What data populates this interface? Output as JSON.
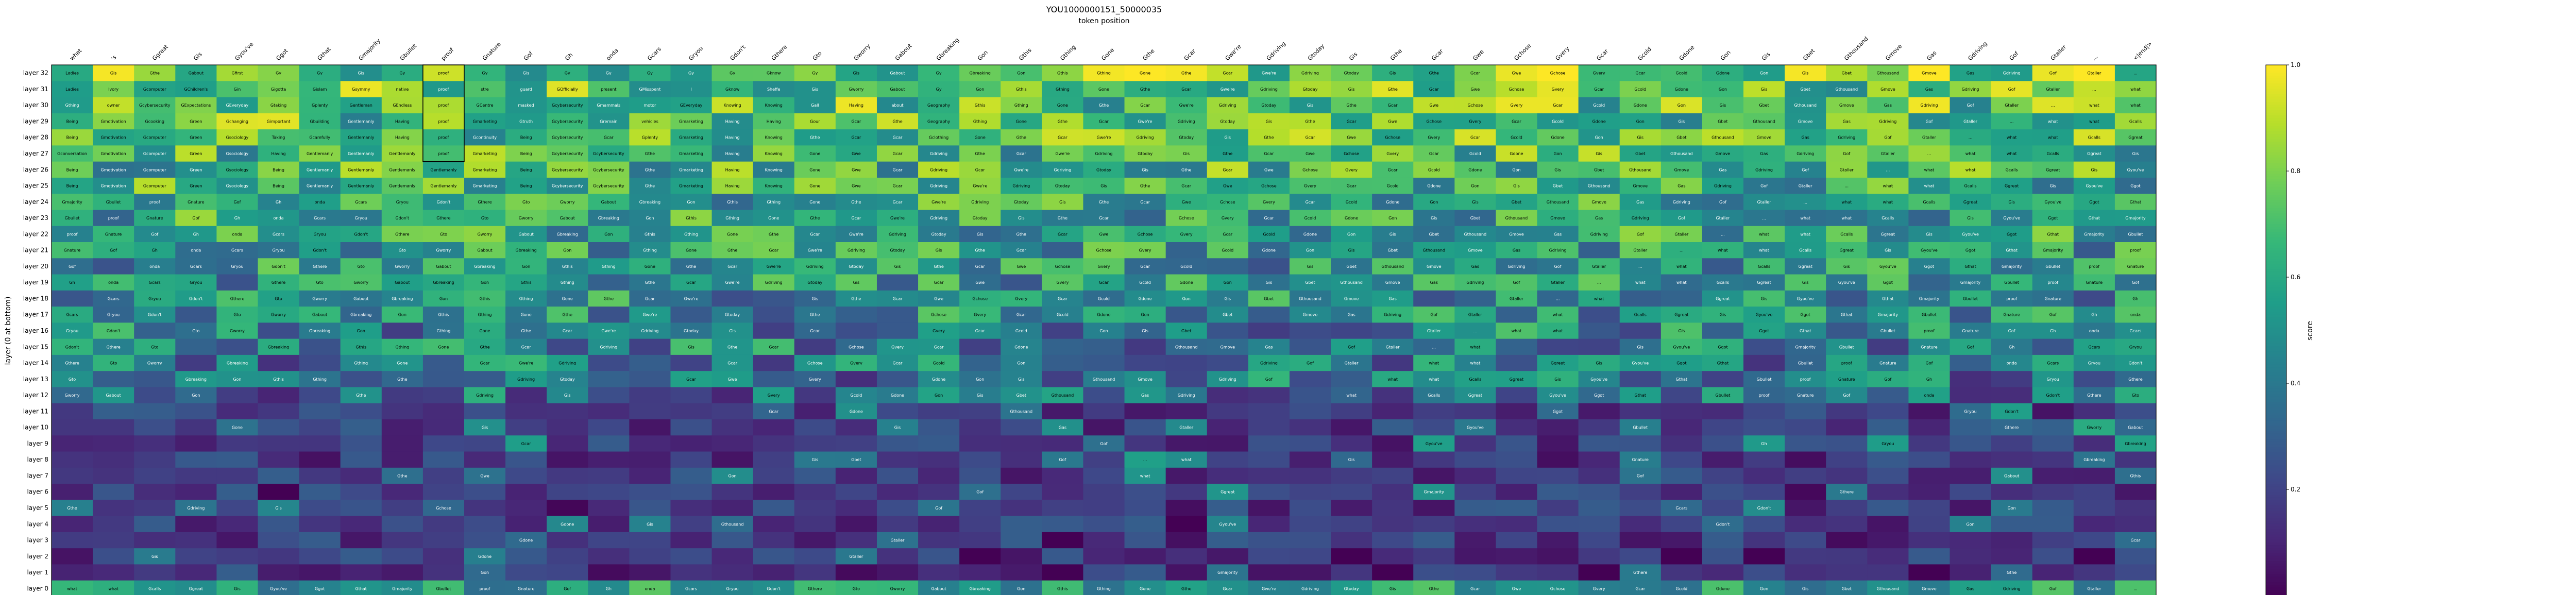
{
  "chart_data": {
    "type": "heatmap",
    "title": "YOU1000000151_50000035",
    "subtitle": "token position",
    "ylabel": "layer (0 at bottom)",
    "colorbar": {
      "label": "score",
      "ticks": [
        "1.0",
        "0.8",
        "0.6",
        "0.4",
        "0.2"
      ],
      "tick_values": [
        1.0,
        0.8,
        0.6,
        0.4,
        0.2
      ]
    },
    "colormap": [
      "#440154",
      "#482878",
      "#3e4989",
      "#31688e",
      "#26828e",
      "#1f9e89",
      "#35b779",
      "#6ece58",
      "#b5de2b",
      "#fde725"
    ],
    "x_tokens": [
      "what",
      "'s",
      "Ggreat",
      "Gis",
      "Gyou've",
      "Ggot",
      "Gthat",
      "Gmajority",
      "Gbullet",
      "proof",
      "Gnature",
      "Gof",
      "Gh",
      "onda",
      "Gcars",
      "Gryou",
      "Gdon't",
      "Gthere",
      "Gto",
      "Gworry",
      "Gabout",
      "Gbreaking",
      "Gon",
      "Gthis",
      "Gthing",
      "Gone",
      "Gthe",
      "Gcar",
      "Gwe're",
      "Gdriving",
      "Gtoday",
      "Gis",
      "Gthe",
      "Gcar",
      "Gwe",
      "Gchose",
      "Gvery",
      "Gcar",
      "Gcold",
      "Gdone",
      "Gon",
      "Gis",
      "Gbet",
      "Gthousand",
      "Gmove",
      "Gas",
      "Gdriving",
      "Gof",
      "Gtaller",
      "...",
      "<|end|>"
    ],
    "y_labels": [
      "layer 32",
      "layer 31",
      "layer 30",
      "layer 29",
      "layer 28",
      "layer 27",
      "layer 26",
      "layer 25",
      "layer 24",
      "layer 23",
      "layer 22",
      "layer 21",
      "layer 20",
      "layer 19",
      "layer 18",
      "layer 17",
      "layer 16",
      "layer 15",
      "layer 14",
      "layer 13",
      "layer 12",
      "layer 11",
      "layer 10",
      "layer 9",
      "layer 8",
      "layer 7",
      "layer 6",
      "layer 5",
      "layer 4",
      "layer 3",
      "layer 2",
      "layer 1",
      "layer 0"
    ],
    "row_words": [
      [
        "Ladies",
        "Gis",
        "Gthe",
        "Gabout",
        "Gfirst",
        "Gy",
        "Gy",
        "Gis",
        "Gy",
        "proof",
        "Gy",
        "Gis",
        "Gy",
        "Gy",
        "Gy",
        "Gy",
        "Gy",
        "Gknow",
        "Gy",
        "Gis",
        "Gabout",
        "Gy"
      ],
      [
        "Ladies",
        "Ivory",
        "Gcomputer",
        "GChildren's",
        "Gin",
        "Gigotta",
        "Gislam",
        "Gsymmy",
        "native",
        "proof",
        "stre",
        "guard",
        "GOfficially",
        "present",
        "GMisspent",
        "I",
        "Gknow",
        "Sheffe",
        "Gis",
        "Gworry",
        "Gabout",
        "Gy"
      ],
      [
        "Gthing",
        "owner",
        "Gcybersecurity",
        "GExpectations",
        "GEveryday",
        "Gtaking",
        "Gplenty",
        "Gentleman",
        "GEndless",
        "proof",
        "GCentre",
        "masked",
        "Gcybersecurity",
        "Gmammals",
        "motor",
        "GEveryday",
        "Knowing",
        "Knowing",
        "Gall",
        "Having",
        "about",
        "Geography"
      ],
      [
        "Being",
        "Gmotivation",
        "Gcooking",
        "Green",
        "Gchanging",
        "Gimportant",
        "Gbuilding",
        "Gentlemanly",
        "Having",
        "proof",
        "Gmarketing",
        "Gtruth",
        "Gcybersecurity",
        "Gremain",
        "vehicles",
        "Gmarketing",
        "Having",
        "Having",
        "Gour",
        "Gcar",
        "Gthe",
        "Geography"
      ],
      [
        "Being",
        "Gmotivation",
        "Gcomputer",
        "Green",
        "Gsociology",
        "Taking",
        "Gcarefully",
        "Gentlemanly",
        "Having",
        "proof",
        "Gcontinuity",
        "Being",
        "Gcybersecurity",
        "Gcar",
        "Gplenty",
        "Gmarketing",
        "Having",
        "Knowing",
        "Gthe",
        "Gcar",
        "Gcar",
        "Gclothing"
      ],
      [
        "Gconversation",
        "Gmotivation",
        "Gcomputer",
        "Green",
        "Gsociology",
        "Having",
        "Gentlemanly",
        "Gentlemanly",
        "Gentlemanly",
        "proof",
        "Gmarketing",
        "Being",
        "Gcybersecurity",
        "Gcybersecurity",
        "Gthe",
        "Gmarketing",
        "Having",
        "Knowing",
        "Gone",
        "Gwe",
        "Gcar",
        "Gdriving"
      ],
      [
        "Being",
        "Gmotivation",
        "Gcomputer",
        "Green",
        "Gsociology",
        "Being",
        "Gentlemanly",
        "Gentlemanly",
        "Gentlemanly",
        "Gentlemanly",
        "Gmarketing",
        "Being",
        "Gcybersecurity",
        "Gcybersecurity",
        "Gthe",
        "Gmarketing",
        "Having",
        "Knowing",
        "Gone",
        "Gwe",
        "Gcar",
        "Gdriving"
      ],
      [
        "Being",
        "Gmotivation",
        "Gcomputer",
        "Green",
        "Gsociology",
        "Being",
        "Gentlemanly",
        "Gentlemanly",
        "Gentlemanly",
        "Gentlemanly",
        "Gmarketing",
        "Being",
        "Gcybersecurity",
        "Gcybersecurity",
        "Gthe",
        "Gmarketing",
        "Having",
        "Knowing",
        "Gone",
        "Gwe",
        "Gcar",
        "Gdriving"
      ]
    ],
    "label_layer_words": [
      "what",
      "what",
      "Gcalls",
      "Ggreat",
      "Gis",
      "Gyou've",
      "Ggot",
      "Gthat",
      "Gmajority",
      "Gbullet",
      "proof",
      "Gnature",
      "Gof",
      "Gh",
      "onda",
      "Gcars",
      "Gryou",
      "Gdon't",
      "Gthere",
      "Gto",
      "Gworry",
      "Gabout",
      "Gbreaking",
      "Gon",
      "Gthis",
      "Gthing",
      "Gone",
      "Gthe",
      "Gcar",
      "Gwe're",
      "Gdriving",
      "Gtoday",
      "Gis",
      "Gthe",
      "Gcar",
      "Gwe",
      "Gchose",
      "Gvery",
      "Gcar",
      "Gcold",
      "Gdone",
      "Gon",
      "Gis",
      "Gbet",
      "Gthousand",
      "Gmove",
      "Gas",
      "Gdriving",
      "Gof",
      "Gtaller",
      "..."
    ],
    "scores_seed": 151,
    "ylim": [
      0,
      32
    ],
    "xlabel": "",
    "grid": false
  }
}
